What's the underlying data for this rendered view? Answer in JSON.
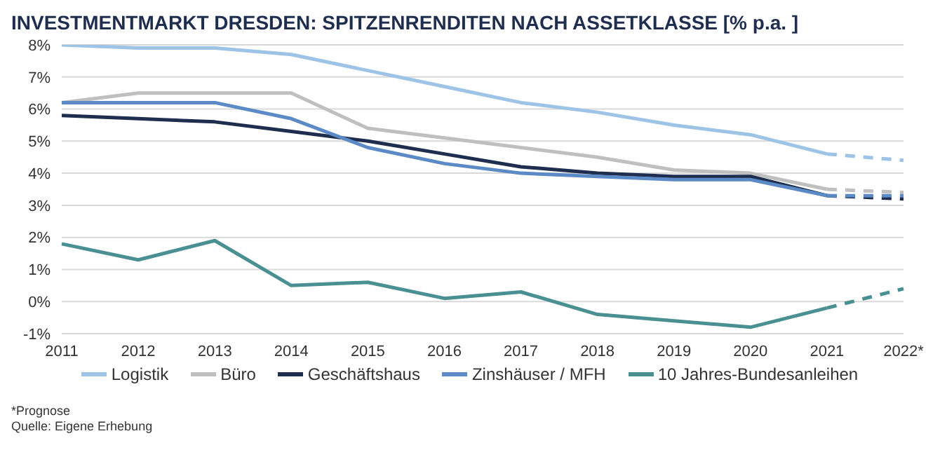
{
  "chart_data": {
    "type": "line",
    "title": "INVESTMENTMARKT DRESDEN: SPITZENRENDITEN NACH ASSETKLASSE [% p.a. ]",
    "categories": [
      "2011",
      "2012",
      "2013",
      "2014",
      "2015",
      "2016",
      "2017",
      "2018",
      "2019",
      "2020",
      "2021",
      "2022*"
    ],
    "series": [
      {
        "name": "Logistik",
        "color": "#9dc3e6",
        "values": [
          8.0,
          7.9,
          7.9,
          7.7,
          7.2,
          6.7,
          6.2,
          5.9,
          5.5,
          5.2,
          4.6,
          null
        ]
      },
      {
        "name": "Büro",
        "color": "#bfbfbf",
        "values": [
          6.2,
          6.5,
          6.5,
          6.5,
          5.4,
          5.1,
          4.8,
          4.5,
          4.1,
          4.0,
          3.5,
          null
        ]
      },
      {
        "name": "Geschäftshaus",
        "color": "#1f2d4e",
        "values": [
          5.8,
          5.7,
          5.6,
          5.3,
          5.0,
          4.6,
          4.2,
          4.0,
          3.9,
          3.9,
          3.3,
          null
        ]
      },
      {
        "name": "Zinshäuser / MFH",
        "color": "#5b8ac6",
        "values": [
          6.2,
          6.2,
          6.2,
          5.7,
          4.8,
          4.3,
          4.0,
          3.9,
          3.8,
          3.8,
          3.3,
          null
        ]
      },
      {
        "name": "10 Jahres-Bundesanleihen",
        "color": "#4a8f92",
        "values": [
          1.8,
          1.3,
          1.9,
          0.5,
          0.6,
          0.1,
          0.3,
          -0.4,
          -0.6,
          -0.8,
          -0.2,
          null
        ]
      },
      {
        "color": "#9dc3e6",
        "line_style": "dashed",
        "values": [
          null,
          null,
          null,
          null,
          null,
          null,
          null,
          null,
          null,
          null,
          4.6,
          4.4
        ]
      },
      {
        "color": "#bfbfbf",
        "line_style": "dashed",
        "values": [
          null,
          null,
          null,
          null,
          null,
          null,
          null,
          null,
          null,
          null,
          3.5,
          3.4
        ]
      },
      {
        "color": "#1f2d4e",
        "line_style": "dashed",
        "values": [
          null,
          null,
          null,
          null,
          null,
          null,
          null,
          null,
          null,
          null,
          3.3,
          3.2
        ]
      },
      {
        "color": "#5b8ac6",
        "line_style": "dashed",
        "values": [
          null,
          null,
          null,
          null,
          null,
          null,
          null,
          null,
          null,
          null,
          3.3,
          3.3
        ]
      },
      {
        "color": "#4a8f92",
        "line_style": "dashed",
        "values": [
          null,
          null,
          null,
          null,
          null,
          null,
          null,
          null,
          null,
          null,
          -0.2,
          0.4
        ]
      }
    ],
    "ylim": [
      -1,
      8
    ],
    "yticks": [
      {
        "value": -1,
        "label": "-1%"
      },
      {
        "value": 0,
        "label": "0%"
      },
      {
        "value": 1,
        "label": "1%"
      },
      {
        "value": 2,
        "label": "2%"
      },
      {
        "value": 3,
        "label": "3%"
      },
      {
        "value": 4,
        "label": "4%"
      },
      {
        "value": 5,
        "label": "5%"
      },
      {
        "value": 6,
        "label": "6%"
      },
      {
        "value": 7,
        "label": "7%"
      },
      {
        "value": 8,
        "label": "8%"
      }
    ],
    "grid": "y",
    "legend": "bottom",
    "marker": "none",
    "line_style": "solid",
    "annotations": [
      "*Prognose",
      "Quelle: Eigene Erhebung"
    ]
  }
}
